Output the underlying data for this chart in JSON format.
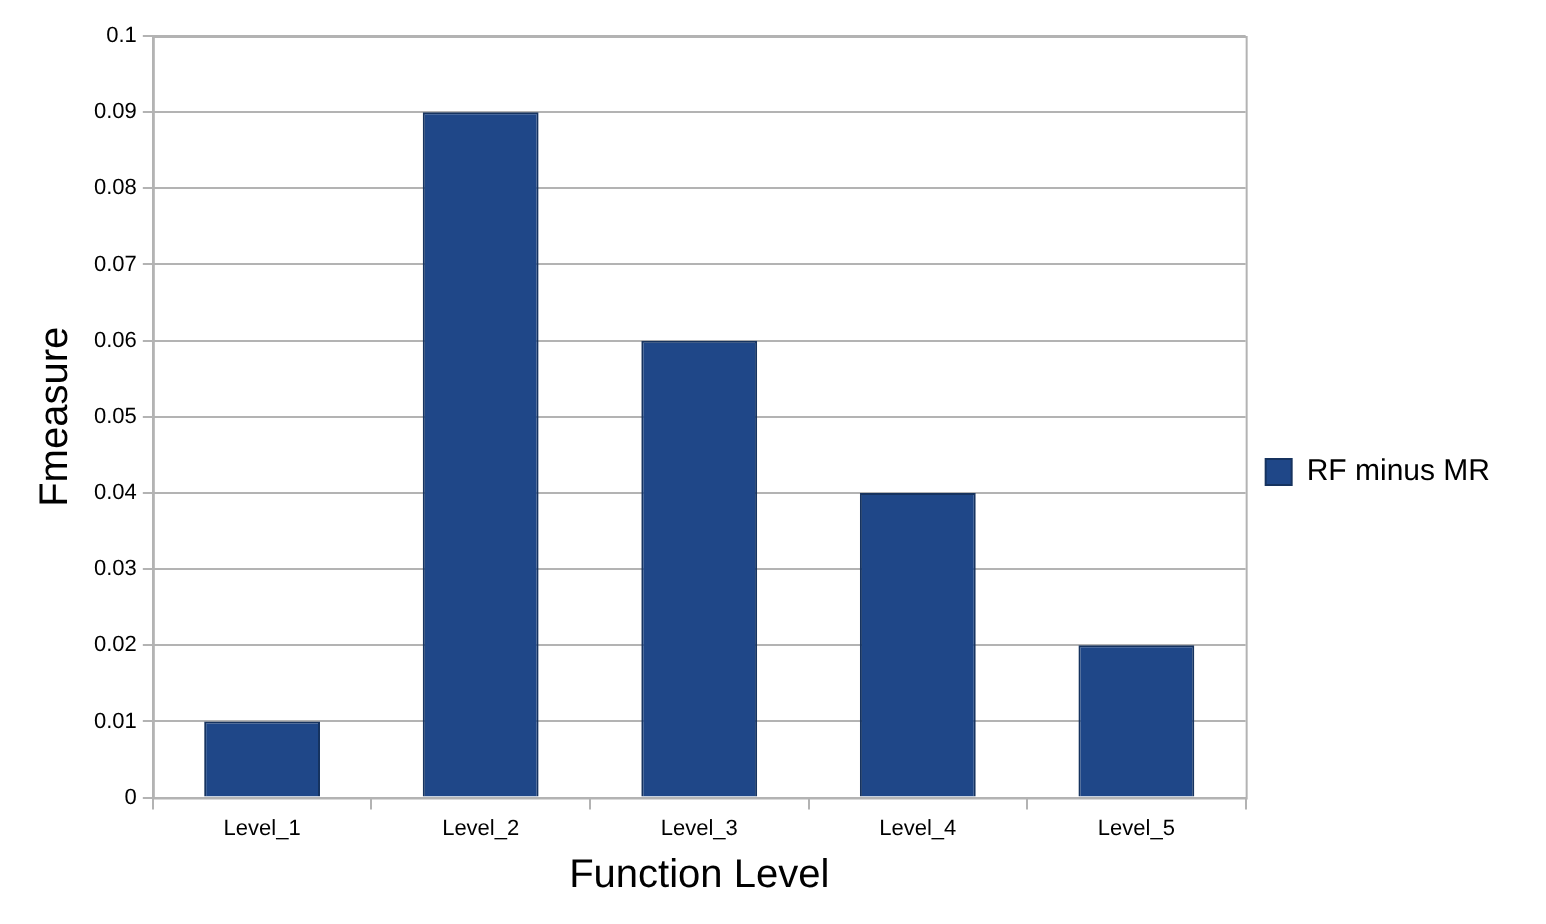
{
  "chart_data": {
    "type": "bar",
    "xlabel": "Function Level",
    "ylabel": "Fmeasure",
    "categories": [
      "Level_1",
      "Level_2",
      "Level_3",
      "Level_4",
      "Level_5"
    ],
    "series": [
      {
        "name": "RF minus MR",
        "color": "#1f4788",
        "values": [
          0.01,
          0.09,
          0.06,
          0.04,
          0.02
        ]
      }
    ],
    "ylim": [
      0,
      0.1
    ],
    "yticks": [
      0,
      0.01,
      0.02,
      0.03,
      0.04,
      0.05,
      0.06,
      0.07,
      0.08,
      0.09,
      0.1
    ],
    "grid": "y",
    "legend": "right"
  }
}
